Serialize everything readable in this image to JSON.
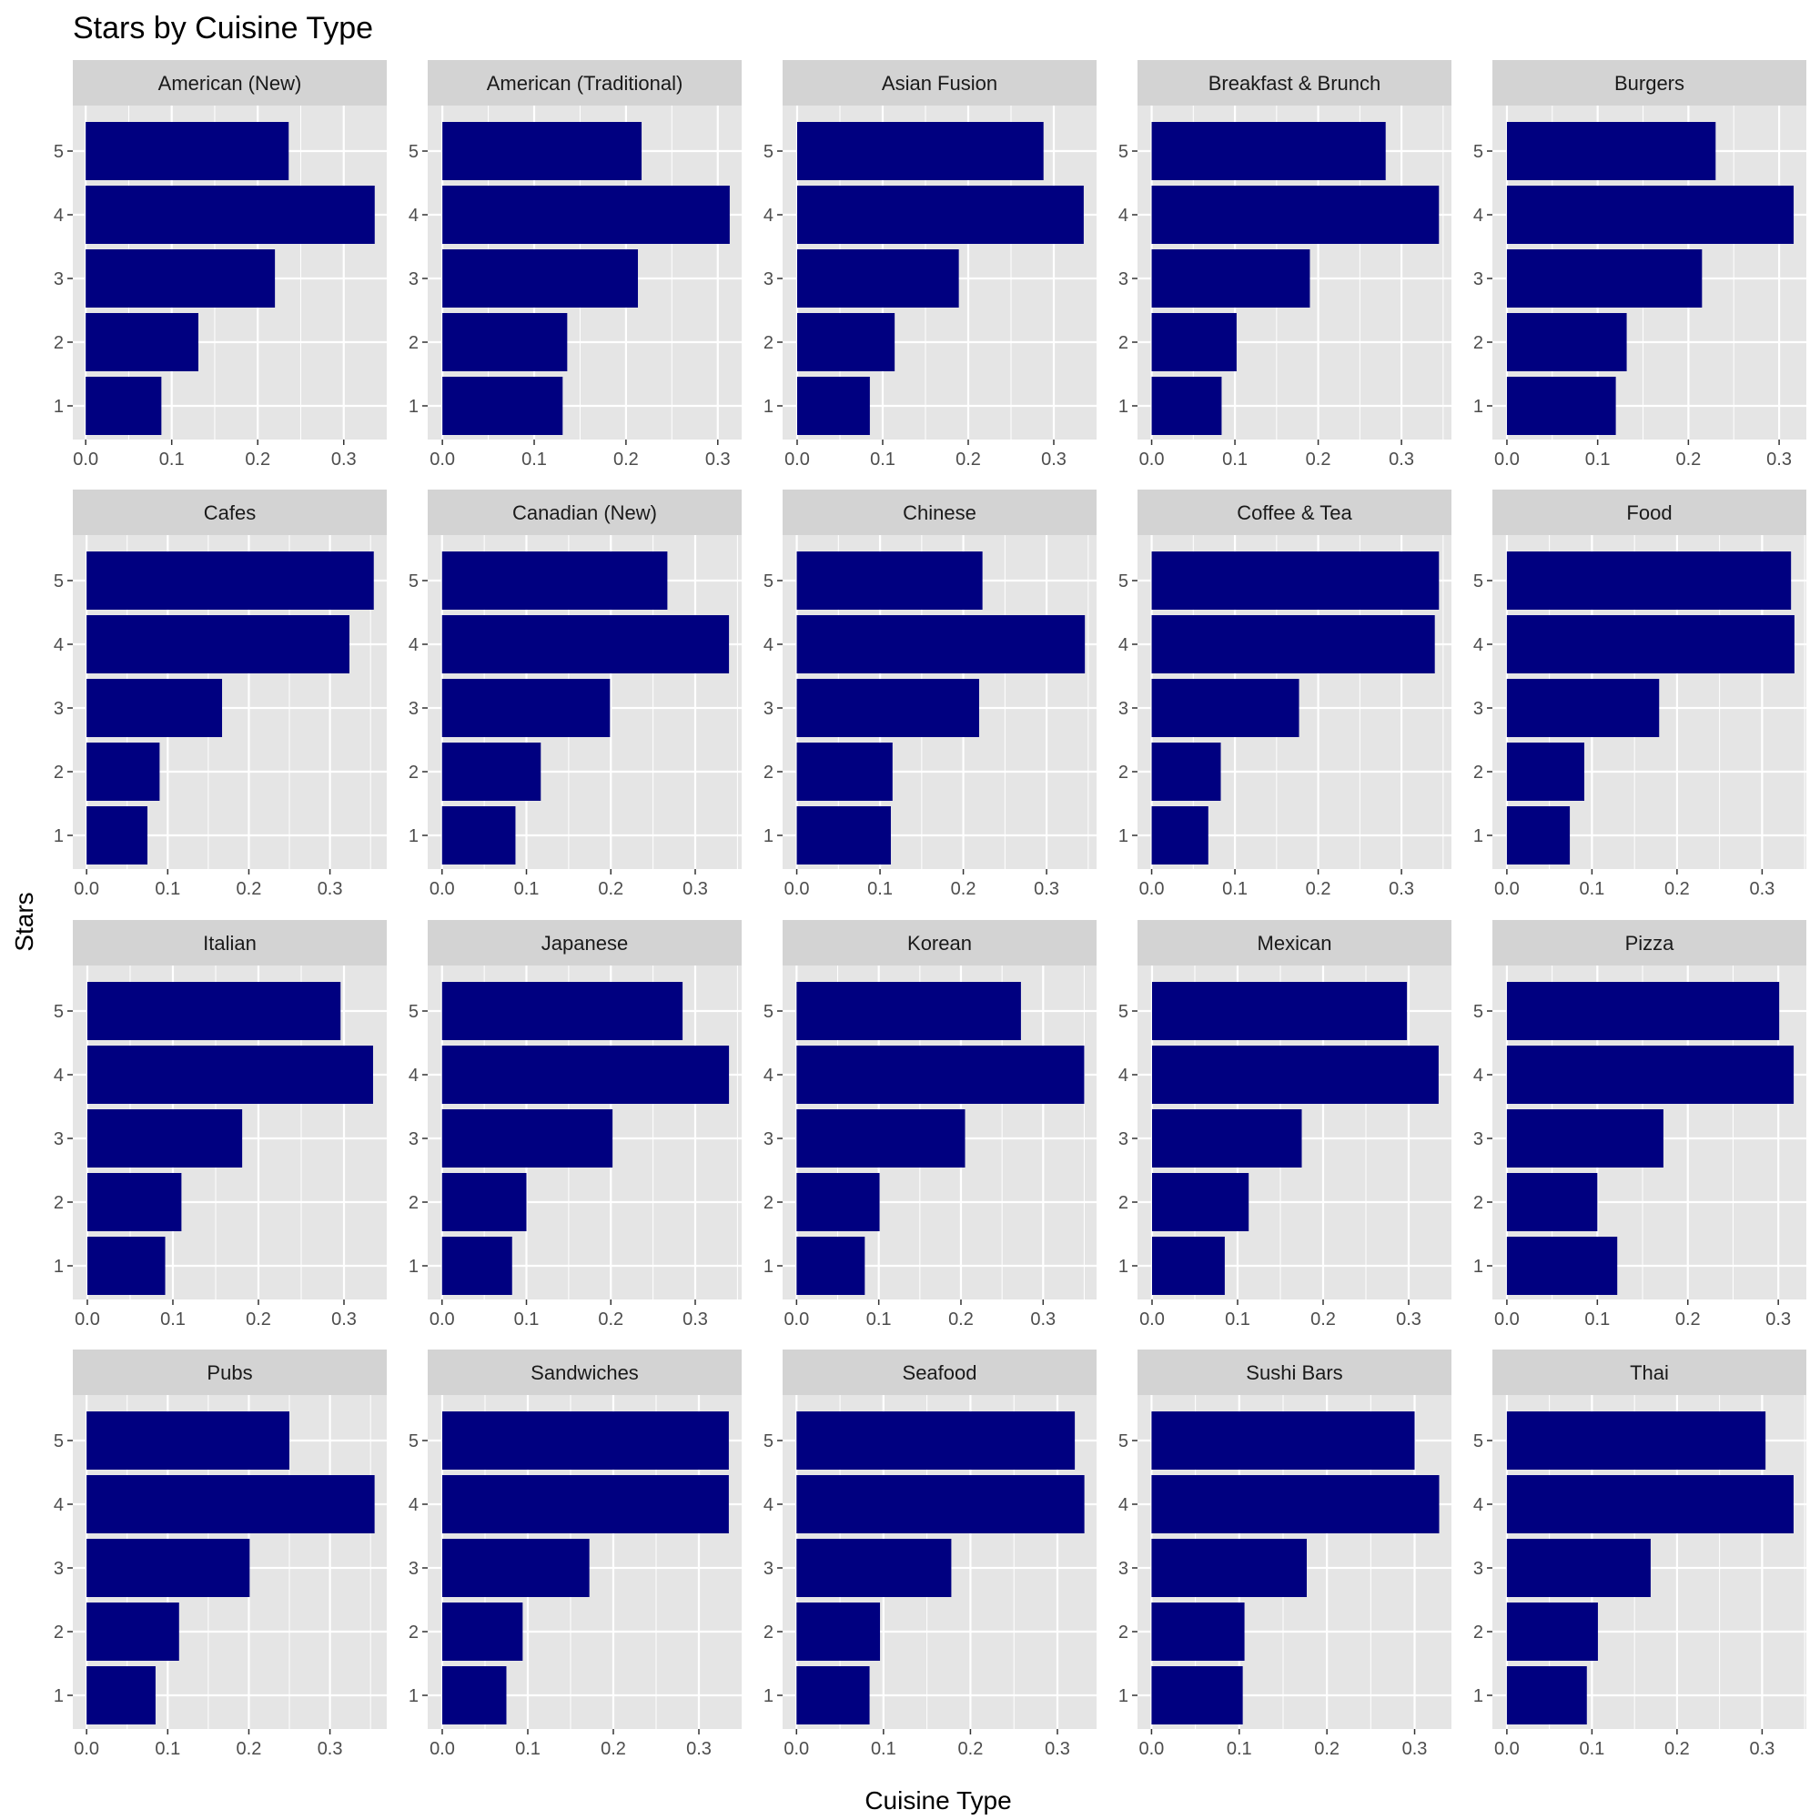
{
  "chart_data": {
    "type": "bar",
    "orientation": "horizontal",
    "title": "Stars by Cuisine Type",
    "xlabel": "Cuisine Type",
    "ylabel": "Stars",
    "categories": [
      "1",
      "2",
      "3",
      "4",
      "5"
    ],
    "grid": true,
    "legend": "none",
    "bar_color": "#000080",
    "panel_background": "#e5e5e5",
    "strip_background": "#d3d3d3",
    "facets": [
      {
        "name": "American (New)",
        "values": [
          0.088,
          0.131,
          0.22,
          0.336,
          0.236
        ],
        "xlim": [
          -0.015,
          0.35
        ],
        "x_ticks": [
          "0.0",
          "0.1",
          "0.2",
          "0.3"
        ]
      },
      {
        "name": "American (Traditional)",
        "values": [
          0.131,
          0.136,
          0.213,
          0.313,
          0.217
        ],
        "xlim": [
          -0.016,
          0.326
        ],
        "x_ticks": [
          "0.0",
          "0.1",
          "0.2",
          "0.3"
        ]
      },
      {
        "name": "Asian Fusion",
        "values": [
          0.085,
          0.114,
          0.189,
          0.335,
          0.288
        ],
        "xlim": [
          -0.017,
          0.35
        ],
        "x_ticks": [
          "0.0",
          "0.1",
          "0.2",
          "0.3"
        ]
      },
      {
        "name": "Breakfast & Brunch",
        "values": [
          0.084,
          0.102,
          0.19,
          0.345,
          0.281
        ],
        "xlim": [
          -0.017,
          0.36
        ],
        "x_ticks": [
          "0.0",
          "0.1",
          "0.2",
          "0.3"
        ]
      },
      {
        "name": "Burgers",
        "values": [
          0.12,
          0.132,
          0.215,
          0.316,
          0.23
        ],
        "xlim": [
          -0.016,
          0.33
        ],
        "x_ticks": [
          "0.0",
          "0.1",
          "0.2",
          "0.3"
        ]
      },
      {
        "name": "Cafes",
        "values": [
          0.075,
          0.09,
          0.167,
          0.324,
          0.354
        ],
        "xlim": [
          -0.017,
          0.37
        ],
        "x_ticks": [
          "0.0",
          "0.1",
          "0.2",
          "0.3"
        ]
      },
      {
        "name": "Canadian (New)",
        "values": [
          0.087,
          0.117,
          0.199,
          0.34,
          0.267
        ],
        "xlim": [
          -0.017,
          0.355
        ],
        "x_ticks": [
          "0.0",
          "0.1",
          "0.2",
          "0.3"
        ]
      },
      {
        "name": "Chinese",
        "values": [
          0.113,
          0.115,
          0.219,
          0.346,
          0.223
        ],
        "xlim": [
          -0.017,
          0.36
        ],
        "x_ticks": [
          "0.0",
          "0.1",
          "0.2",
          "0.3"
        ]
      },
      {
        "name": "Coffee & Tea",
        "values": [
          0.068,
          0.083,
          0.177,
          0.34,
          0.345
        ],
        "xlim": [
          -0.017,
          0.36
        ],
        "x_ticks": [
          "0.0",
          "0.1",
          "0.2",
          "0.3"
        ]
      },
      {
        "name": "Food",
        "values": [
          0.074,
          0.091,
          0.179,
          0.338,
          0.334
        ],
        "xlim": [
          -0.017,
          0.352
        ],
        "x_ticks": [
          "0.0",
          "0.1",
          "0.2",
          "0.3"
        ]
      },
      {
        "name": "Italian",
        "values": [
          0.091,
          0.11,
          0.181,
          0.334,
          0.296
        ],
        "xlim": [
          -0.017,
          0.35
        ],
        "x_ticks": [
          "0.0",
          "0.1",
          "0.2",
          "0.3"
        ]
      },
      {
        "name": "Japanese",
        "values": [
          0.083,
          0.1,
          0.202,
          0.34,
          0.285
        ],
        "xlim": [
          -0.017,
          0.355
        ],
        "x_ticks": [
          "0.0",
          "0.1",
          "0.2",
          "0.3"
        ]
      },
      {
        "name": "Korean",
        "values": [
          0.083,
          0.101,
          0.205,
          0.35,
          0.273
        ],
        "xlim": [
          -0.017,
          0.365
        ],
        "x_ticks": [
          "0.0",
          "0.1",
          "0.2",
          "0.3"
        ]
      },
      {
        "name": "Mexican",
        "values": [
          0.085,
          0.113,
          0.175,
          0.335,
          0.298
        ],
        "xlim": [
          -0.017,
          0.35
        ],
        "x_ticks": [
          "0.0",
          "0.1",
          "0.2",
          "0.3"
        ]
      },
      {
        "name": "Pizza",
        "values": [
          0.122,
          0.1,
          0.173,
          0.317,
          0.301
        ],
        "xlim": [
          -0.016,
          0.331
        ],
        "x_ticks": [
          "0.0",
          "0.1",
          "0.2",
          "0.3"
        ]
      },
      {
        "name": "Pubs",
        "values": [
          0.085,
          0.114,
          0.201,
          0.355,
          0.25
        ],
        "xlim": [
          -0.017,
          0.37
        ],
        "x_ticks": [
          "0.0",
          "0.1",
          "0.2",
          "0.3"
        ]
      },
      {
        "name": "Sandwiches",
        "values": [
          0.075,
          0.094,
          0.172,
          0.335,
          0.335
        ],
        "xlim": [
          -0.017,
          0.35
        ],
        "x_ticks": [
          "0.0",
          "0.1",
          "0.2",
          "0.3"
        ]
      },
      {
        "name": "Seafood",
        "values": [
          0.084,
          0.096,
          0.178,
          0.331,
          0.32
        ],
        "xlim": [
          -0.016,
          0.345
        ],
        "x_ticks": [
          "0.0",
          "0.1",
          "0.2",
          "0.3"
        ]
      },
      {
        "name": "Sushi Bars",
        "values": [
          0.104,
          0.106,
          0.177,
          0.328,
          0.3
        ],
        "xlim": [
          -0.016,
          0.342
        ],
        "x_ticks": [
          "0.0",
          "0.1",
          "0.2",
          "0.3"
        ]
      },
      {
        "name": "Thai",
        "values": [
          0.094,
          0.107,
          0.169,
          0.337,
          0.304
        ],
        "xlim": [
          -0.017,
          0.352
        ],
        "x_ticks": [
          "0.0",
          "0.1",
          "0.2",
          "0.3"
        ]
      }
    ]
  }
}
